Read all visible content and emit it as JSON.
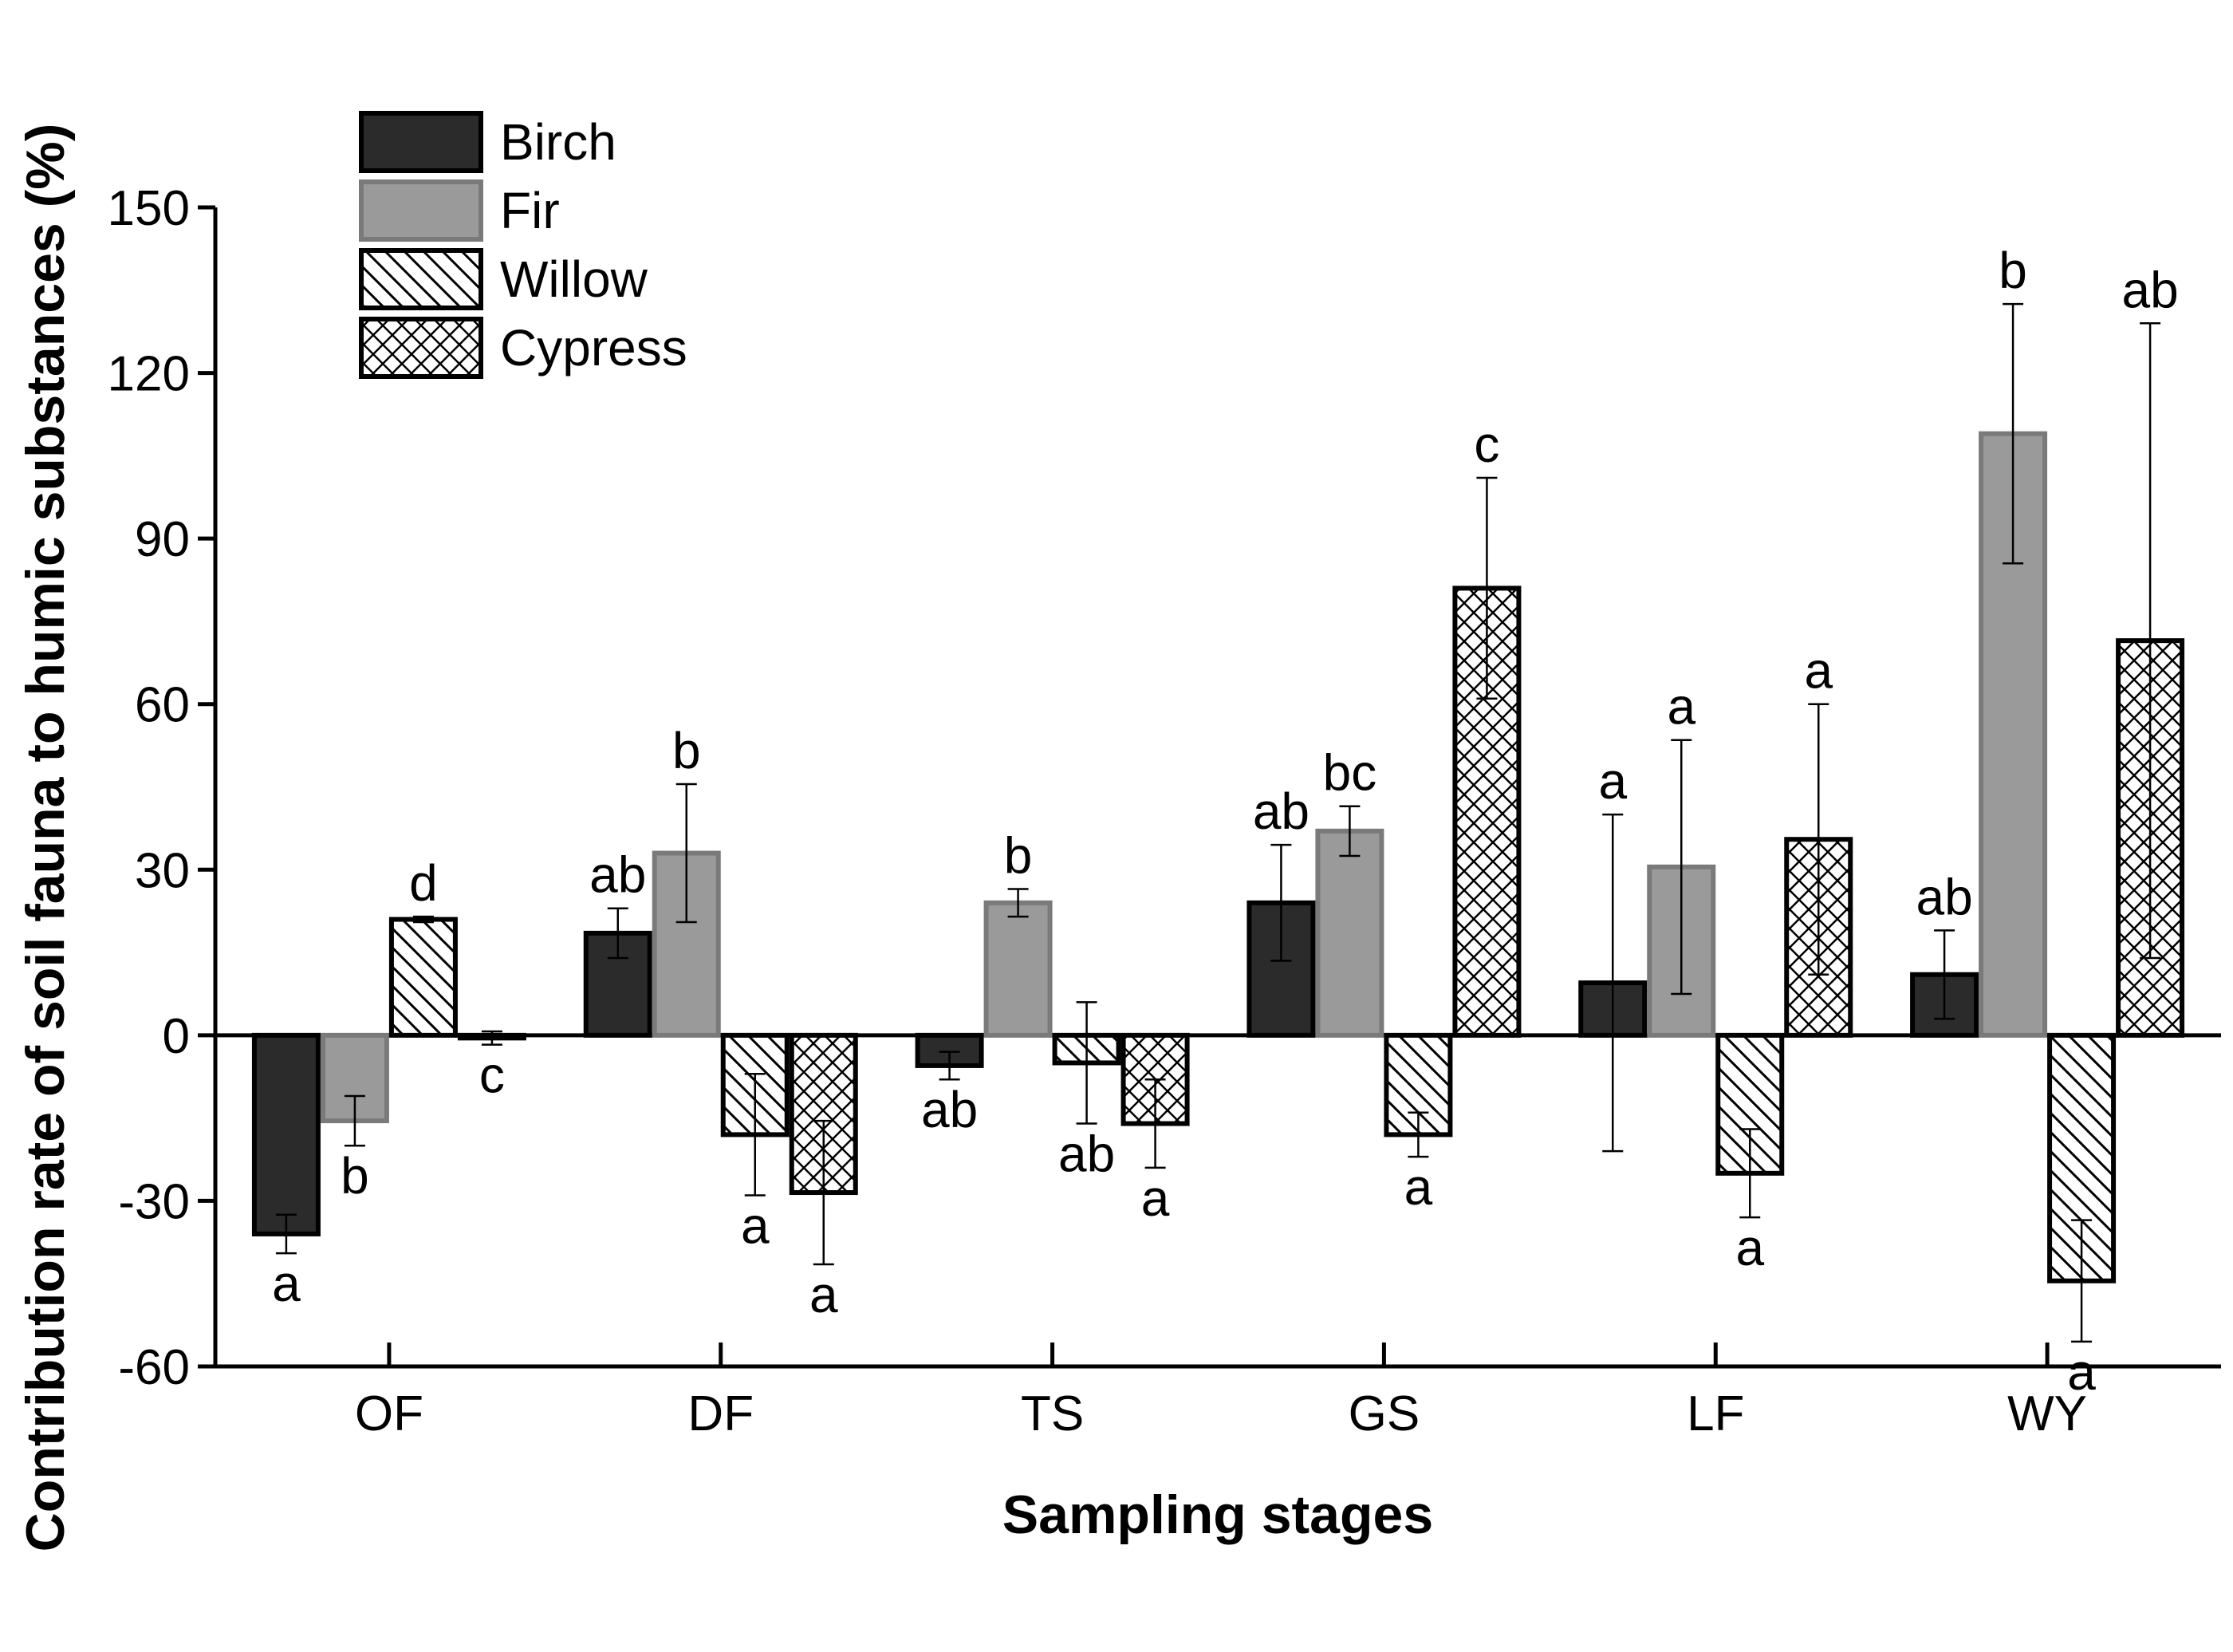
{
  "chart_data": {
    "type": "bar",
    "title": "",
    "xlabel": "Sampling stages",
    "ylabel": "Contribution rate of soil fauna to humic substances (%)",
    "ylim": [
      -60,
      150
    ],
    "yticks": [
      -60,
      -30,
      0,
      30,
      60,
      90,
      120,
      150
    ],
    "categories": [
      "OF",
      "DF",
      "TS",
      "GS",
      "LF",
      "WY"
    ],
    "legend_position": "top-left",
    "series": [
      {
        "name": "Birch",
        "pattern": "solid-dark",
        "values": [
          -36,
          18.5,
          -5.5,
          24,
          9.5,
          11
        ],
        "errors": [
          3.5,
          4.5,
          2.5,
          10.5,
          30.5,
          8
        ],
        "letters": [
          "a",
          "ab",
          "ab",
          "ab",
          "a",
          "ab"
        ]
      },
      {
        "name": "Fir",
        "pattern": "solid-gray",
        "values": [
          -15.5,
          33,
          24,
          37,
          30.5,
          109
        ],
        "errors": [
          4.5,
          12.5,
          2.5,
          4.5,
          23,
          23.5
        ],
        "letters": [
          "b",
          "b",
          "b",
          "bc",
          "a",
          "b"
        ]
      },
      {
        "name": "Willow",
        "pattern": "diagonal",
        "values": [
          21,
          -18,
          -5,
          -18,
          -25,
          -44.5
        ],
        "errors": [
          0.5,
          11,
          11,
          4,
          8,
          11
        ],
        "letters": [
          "d",
          "a",
          "ab",
          "a",
          "a",
          "a"
        ]
      },
      {
        "name": "Cypress",
        "pattern": "crosshatch",
        "values": [
          -0.5,
          -28.5,
          -16,
          81,
          35.5,
          71.5
        ],
        "errors": [
          1.2,
          13,
          8,
          20,
          24.5,
          57.5
        ],
        "letters": [
          "c",
          "a",
          "a",
          "c",
          "a",
          "ab"
        ]
      }
    ]
  }
}
